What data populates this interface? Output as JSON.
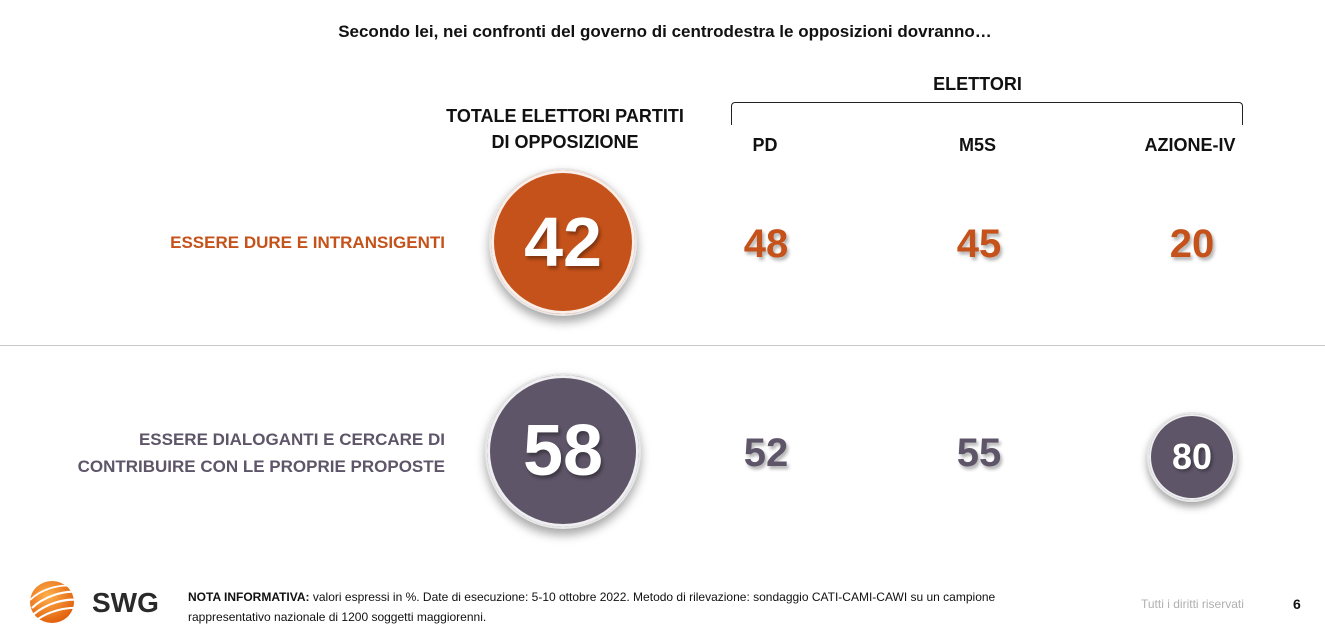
{
  "title": "Secondo lei, nei confronti del governo di centrodestra le opposizioni dovranno…",
  "headers": {
    "total_line1": "TOTALE ELETTORI PARTITI",
    "total_line2": "DI OPPOSIZIONE",
    "group": "ELETTORI",
    "parties": [
      "PD",
      "M5S",
      "AZIONE-IV"
    ]
  },
  "colors": {
    "orange": "#C5521A",
    "purple": "#5E5568",
    "label_orange": "#C5521A",
    "label_purple": "#5E5568"
  },
  "chart_data": {
    "type": "table",
    "title": "Secondo lei, nei confronti del governo di centrodestra le opposizioni dovranno…",
    "columns": [
      "TOTALE ELETTORI PARTITI DI OPPOSIZIONE",
      "PD",
      "M5S",
      "AZIONE-IV"
    ],
    "rows": [
      {
        "label_line1": "ESSERE DURE E INTRANSIGENTI",
        "label_line2": "",
        "total": "42",
        "values": [
          "48",
          "45",
          "20"
        ]
      },
      {
        "label_line1": "ESSERE DIALOGANTI E CERCARE DI",
        "label_line2": "CONTRIBUIRE CON LE PROPRIE PROPOSTE",
        "total": "58",
        "values": [
          "52",
          "55",
          "80"
        ]
      }
    ],
    "unit": "%"
  },
  "footer": {
    "logo": "SWG",
    "note_bold": "NOTA INFORMATIVA:",
    "note_line1": " valori espressi in %. Date di esecuzione: 5-10 ottobre 2022. Metodo di rilevazione: sondaggio CATI-CAMI-CAWI su un campione",
    "note_line2": "rappresentativo nazionale di 1200 soggetti maggiorenni.",
    "rights": "Tutti i diritti riservati",
    "page": "6"
  }
}
